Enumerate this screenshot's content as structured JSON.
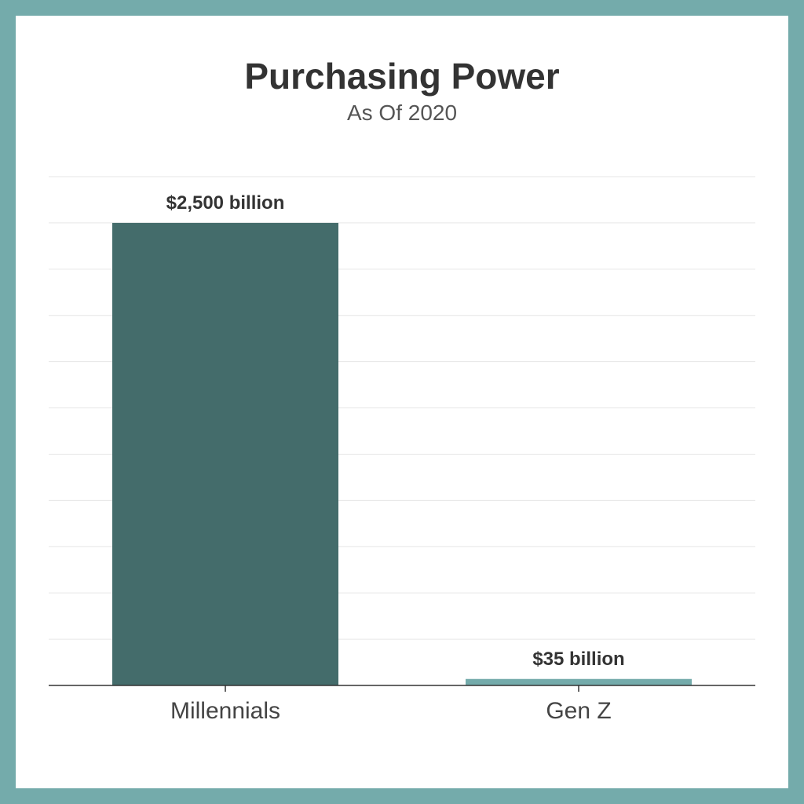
{
  "chart_data": {
    "type": "bar",
    "title": "Purchasing Power",
    "subtitle": "As Of 2020",
    "categories": [
      "Millennials",
      "Gen Z"
    ],
    "values": [
      2500,
      35
    ],
    "data_labels": [
      "$2,500 billion",
      "$35 billion"
    ],
    "unit": "billion USD",
    "ylim": [
      0,
      2750
    ],
    "grid": true,
    "colors": [
      "#446c6b",
      "#74abab"
    ]
  },
  "colors": {
    "frame": "#74abab",
    "background": "#ffffff"
  }
}
